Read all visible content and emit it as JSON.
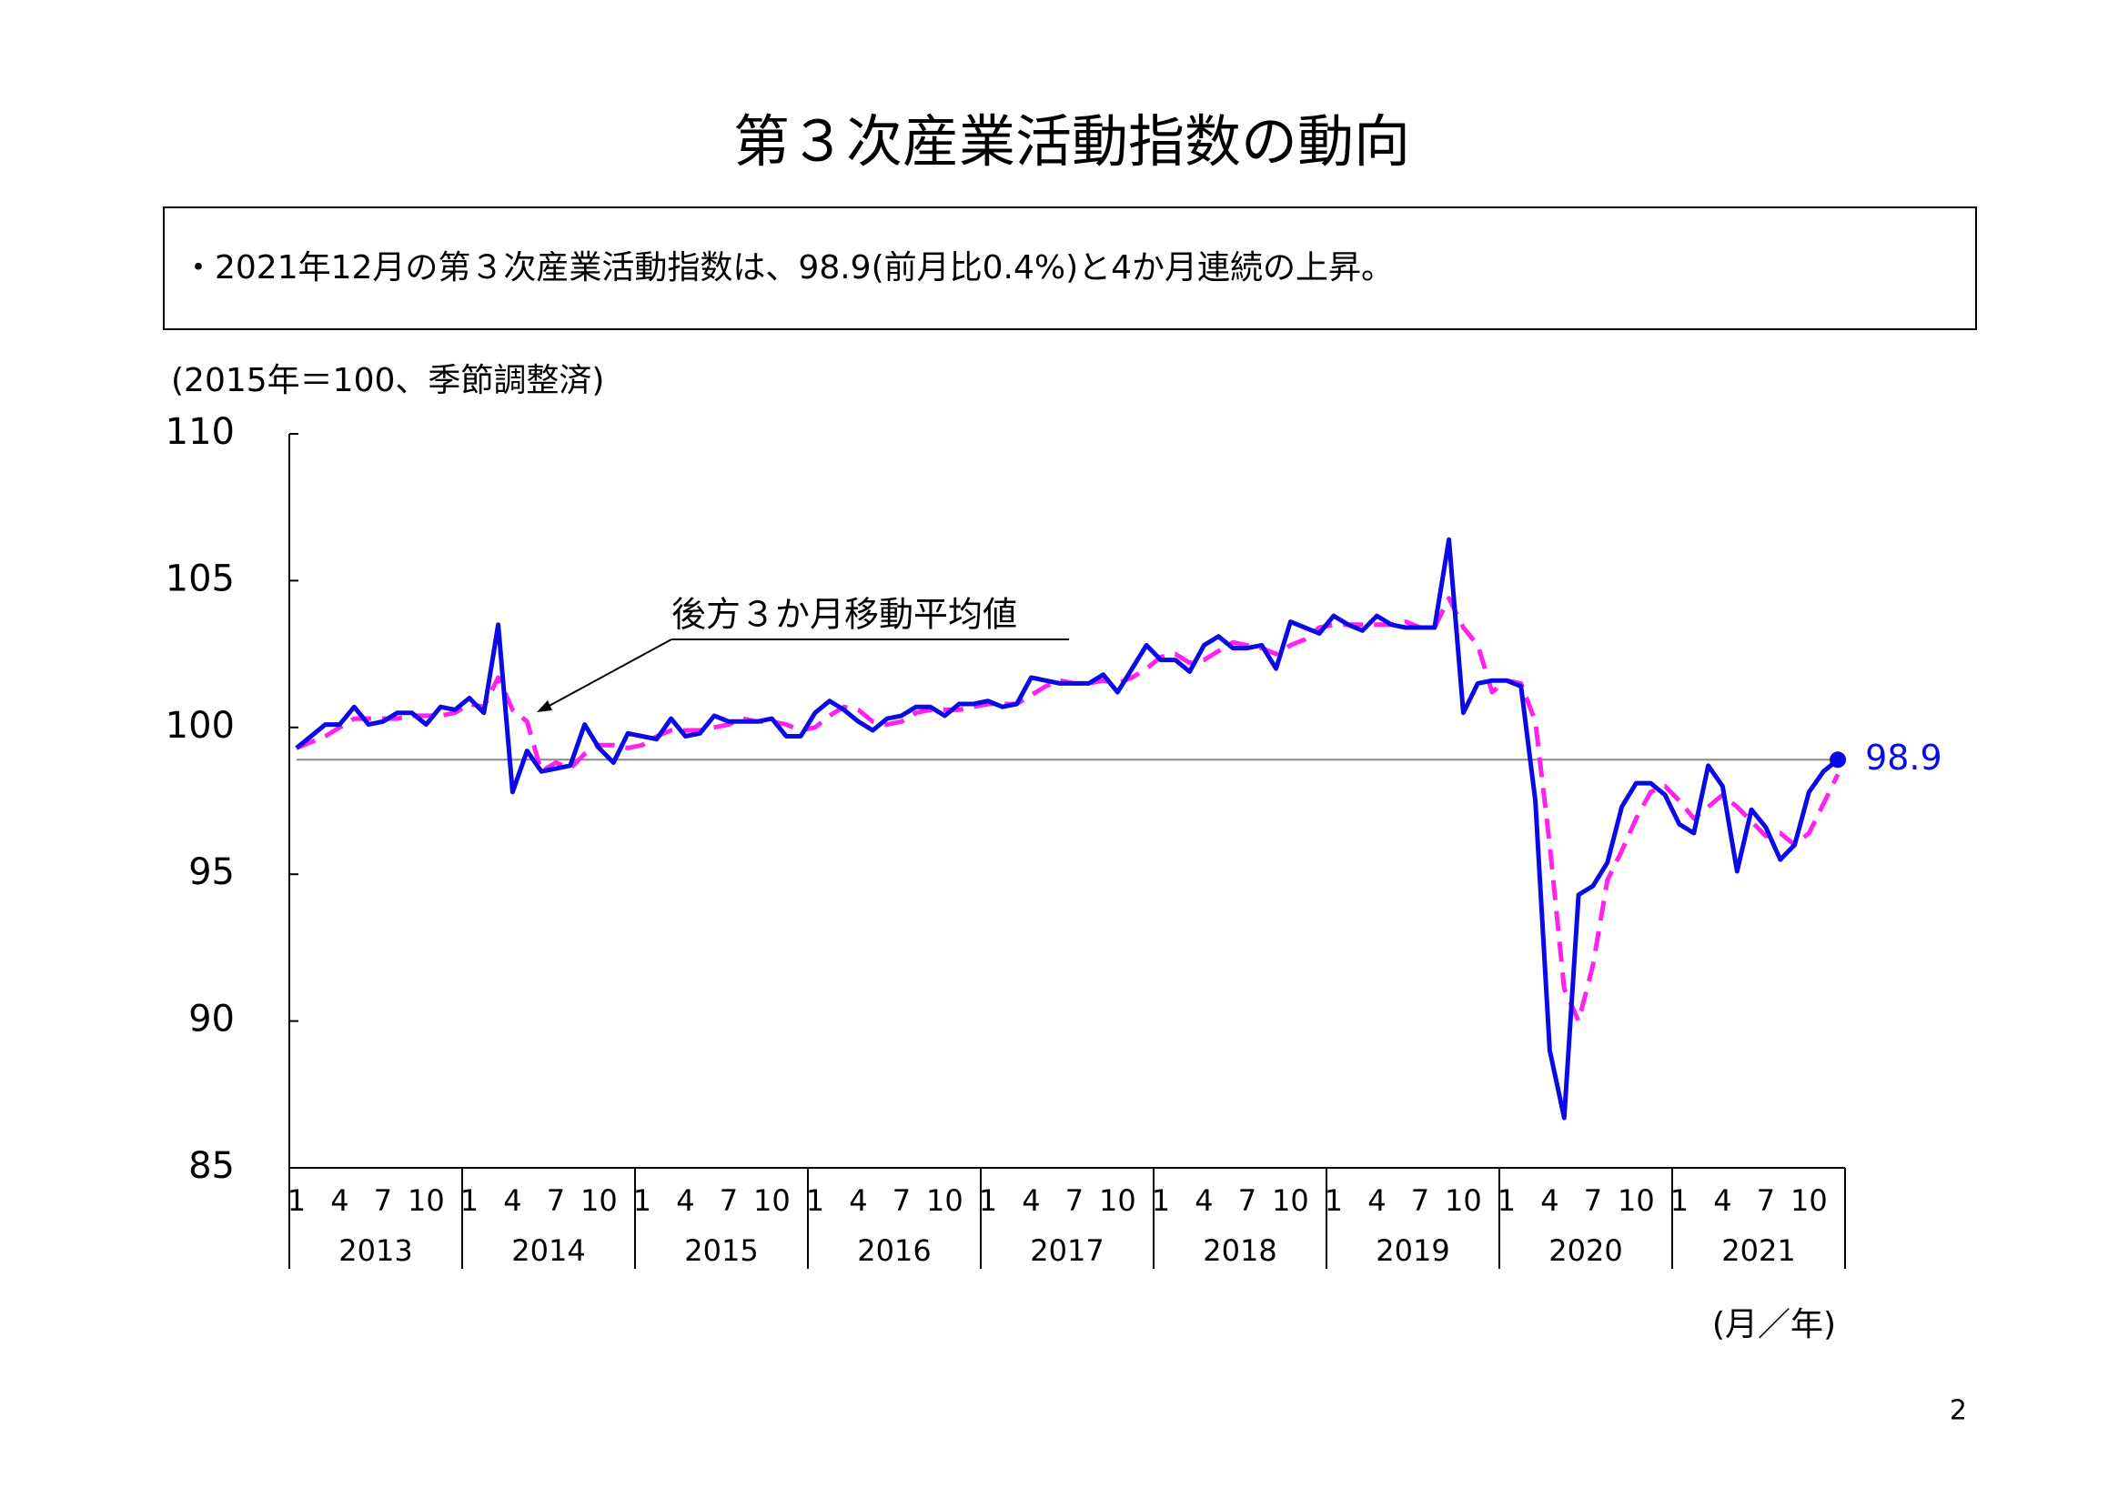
{
  "chart_data": {
    "type": "line",
    "title": "第３次産業活動指数の動向",
    "note": "・2021年12月の第３次産業活動指数は、98.9(前月比0.4%)と4か月連続の上昇。",
    "y_label": "(2015年＝100、季節調整済)",
    "x_label": "(月／年)",
    "annotation": "後方３か月移動平均値",
    "page_number": "2",
    "categories": [
      "1",
      null,
      null,
      "4",
      null,
      null,
      "7",
      null,
      null,
      "10",
      null,
      null,
      "1",
      null,
      null,
      "4",
      null,
      null,
      "7",
      null,
      null,
      "10",
      null,
      null,
      "1",
      null,
      null,
      "4",
      null,
      null,
      "7",
      null,
      null,
      "10",
      null,
      null,
      "1",
      null,
      null,
      "4",
      null,
      null,
      "7",
      null,
      null,
      "10",
      null,
      null,
      "1",
      null,
      null,
      "4",
      null,
      null,
      "7",
      null,
      null,
      "10",
      null,
      null,
      "1",
      null,
      null,
      "4",
      null,
      null,
      "7",
      null,
      null,
      "10",
      null,
      null,
      "1",
      null,
      null,
      "4",
      null,
      null,
      "7",
      null,
      null,
      "10",
      null,
      null,
      "1",
      null,
      null,
      "4",
      null,
      null,
      "7",
      null,
      null,
      "10",
      null,
      null,
      "1",
      null,
      null,
      "4",
      null,
      null,
      "7",
      null,
      null,
      "10",
      null,
      null
    ],
    "years": [
      "2013",
      "2014",
      "2015",
      "2016",
      "2017",
      "2018",
      "2019",
      "2020",
      "2021"
    ],
    "ylim": [
      85,
      110
    ],
    "yticks": [
      85,
      90,
      95,
      100,
      105,
      110
    ],
    "series": [
      {
        "name": "第３次産業活動指数",
        "color": "#0a0ae6",
        "dash": false,
        "values": [
          99.3,
          99.7,
          100.1,
          100.1,
          100.7,
          100.1,
          100.2,
          100.5,
          100.5,
          100.1,
          100.7,
          100.6,
          101.0,
          100.5,
          103.5,
          97.8,
          99.2,
          98.5,
          98.6,
          98.7,
          100.1,
          99.3,
          98.8,
          99.8,
          99.7,
          99.6,
          100.3,
          99.7,
          99.8,
          100.4,
          100.2,
          100.2,
          100.2,
          100.3,
          99.7,
          99.7,
          100.5,
          100.9,
          100.6,
          100.2,
          99.9,
          100.3,
          100.4,
          100.7,
          100.7,
          100.4,
          100.8,
          100.8,
          100.9,
          100.7,
          100.8,
          101.7,
          101.6,
          101.5,
          101.5,
          101.5,
          101.8,
          101.2,
          102.0,
          102.8,
          102.3,
          102.3,
          101.9,
          102.8,
          103.1,
          102.7,
          102.7,
          102.8,
          102.0,
          103.6,
          103.4,
          103.2,
          103.8,
          103.5,
          103.3,
          103.8,
          103.5,
          103.4,
          103.4,
          103.4,
          106.4,
          100.5,
          101.5,
          101.6,
          101.6,
          101.4,
          97.5,
          89.0,
          86.7,
          94.3,
          94.6,
          95.4,
          97.3,
          98.1,
          98.1,
          97.7,
          96.7,
          96.4,
          98.7,
          98.0,
          95.1,
          97.2,
          96.6,
          95.5,
          96.0,
          97.8,
          98.5,
          98.9
        ]
      },
      {
        "name": "後方３か月移動平均値",
        "color": "#ff22ee",
        "dash": true,
        "values": [
          99.3,
          99.5,
          99.7,
          100.0,
          100.3,
          100.3,
          100.3,
          100.3,
          100.4,
          100.4,
          100.4,
          100.5,
          100.8,
          100.7,
          101.7,
          100.6,
          100.2,
          98.5,
          98.8,
          98.6,
          99.1,
          99.4,
          99.4,
          99.3,
          99.4,
          99.7,
          99.9,
          99.9,
          99.9,
          100.0,
          100.1,
          100.3,
          100.2,
          100.2,
          100.1,
          99.9,
          100.0,
          100.4,
          100.7,
          100.6,
          100.2,
          100.1,
          100.2,
          100.5,
          100.6,
          100.6,
          100.6,
          100.7,
          100.8,
          100.8,
          100.8,
          101.1,
          101.4,
          101.6,
          101.5,
          101.5,
          101.6,
          101.5,
          101.7,
          102.0,
          102.4,
          102.5,
          102.2,
          102.3,
          102.6,
          102.9,
          102.8,
          102.7,
          102.5,
          102.8,
          103.0,
          103.4,
          103.5,
          103.5,
          103.5,
          103.5,
          103.5,
          103.6,
          103.4,
          103.4,
          104.4,
          103.4,
          102.8,
          101.2,
          101.6,
          101.5,
          100.2,
          96.0,
          91.1,
          90.0,
          91.9,
          94.8,
          95.8,
          96.9,
          97.8,
          98.0,
          97.5,
          96.9,
          97.3,
          97.7,
          97.3,
          96.8,
          96.3,
          96.4,
          96.0,
          96.4,
          97.4,
          98.4
        ]
      }
    ]
  }
}
